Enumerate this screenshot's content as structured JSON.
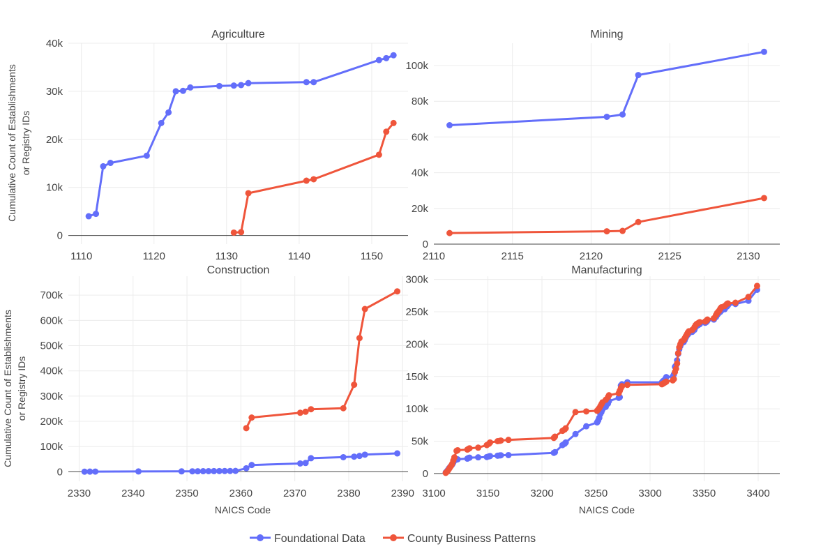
{
  "legend": [
    {
      "name": "Foundational Data",
      "color": "#636efa"
    },
    {
      "name": "County Business Patterns",
      "color": "#ef553b"
    }
  ],
  "y_title": [
    "Cumulative Count of Establishments",
    "or Registry IDs"
  ],
  "x_title": "NAICS Code",
  "chart_data": [
    {
      "type": "line",
      "title": "Agriculture",
      "xlim": [
        1108.2,
        1155.0
      ],
      "ylim": [
        -1800,
        40000
      ],
      "xticks": [
        1110,
        1120,
        1130,
        1140,
        1150
      ],
      "yticks": [
        0,
        10000,
        20000,
        30000,
        40000
      ],
      "ytick_labels": [
        "0",
        "10k",
        "20k",
        "30k",
        "40k"
      ],
      "series": [
        {
          "name": "Foundational Data",
          "color": "#636efa",
          "x": [
            1111,
            1112,
            1113,
            1114,
            1119,
            1121,
            1122,
            1123,
            1124,
            1125,
            1129,
            1131,
            1132,
            1133,
            1141,
            1142,
            1151,
            1152,
            1153
          ],
          "y": [
            4000,
            4500,
            14400,
            15100,
            16600,
            23400,
            25600,
            30000,
            30100,
            30800,
            31100,
            31200,
            31300,
            31700,
            31900,
            31900,
            36500,
            36900,
            37500
          ]
        },
        {
          "name": "County Business Patterns",
          "color": "#ef553b",
          "x": [
            1131,
            1132,
            1133,
            1141,
            1142,
            1151,
            1152,
            1153
          ],
          "y": [
            600,
            700,
            8800,
            11400,
            11700,
            16800,
            21600,
            23400
          ]
        }
      ]
    },
    {
      "type": "line",
      "title": "Mining",
      "xlim": [
        2110,
        2132.0
      ],
      "ylim": [
        0,
        112500
      ],
      "xticks": [
        2110,
        2115,
        2120,
        2125,
        2130
      ],
      "yticks": [
        0,
        20000,
        40000,
        60000,
        80000,
        100000
      ],
      "ytick_labels": [
        "0",
        "20k",
        "40k",
        "60k",
        "80k",
        "100k"
      ],
      "series": [
        {
          "name": "Foundational Data",
          "color": "#636efa",
          "x": [
            2111,
            2121,
            2122,
            2123,
            2131
          ],
          "y": [
            66600,
            71300,
            72600,
            94700,
            107700
          ]
        },
        {
          "name": "County Business Patterns",
          "color": "#ef553b",
          "x": [
            2111,
            2121,
            2122,
            2123,
            2131
          ],
          "y": [
            6200,
            7200,
            7400,
            12400,
            25800
          ]
        }
      ]
    },
    {
      "type": "line",
      "title": "Construction",
      "xlim": [
        2328.0,
        2391.0
      ],
      "ylim": [
        -37500,
        775000
      ],
      "xticks": [
        2330,
        2340,
        2350,
        2360,
        2370,
        2380,
        2390
      ],
      "yticks": [
        0,
        100000,
        200000,
        300000,
        400000,
        500000,
        600000,
        700000
      ],
      "ytick_labels": [
        "0",
        "100k",
        "200k",
        "300k",
        "400k",
        "500k",
        "600k",
        "700k"
      ],
      "series": [
        {
          "name": "Foundational Data",
          "color": "#636efa",
          "x": [
            2331,
            2332,
            2333,
            2341,
            2349,
            2351,
            2352,
            2353,
            2354,
            2355,
            2356,
            2357,
            2358,
            2359,
            2361,
            2362,
            2371,
            2372,
            2373,
            2379,
            2381,
            2382,
            2383,
            2389
          ],
          "y": [
            500,
            800,
            1000,
            1500,
            1800,
            2000,
            2200,
            2400,
            2600,
            2800,
            3000,
            3200,
            3400,
            3600,
            14000,
            27000,
            33000,
            35000,
            54000,
            58000,
            60000,
            63000,
            68000,
            73000
          ]
        },
        {
          "name": "County Business Patterns",
          "color": "#ef553b",
          "x": [
            2361,
            2362,
            2371,
            2372,
            2373,
            2379,
            2381,
            2382,
            2383,
            2389
          ],
          "y": [
            173000,
            215000,
            234000,
            238000,
            248000,
            252000,
            345000,
            530000,
            645000,
            715000
          ]
        }
      ]
    },
    {
      "type": "line",
      "title": "Manufacturing",
      "xlim": [
        3100,
        3420
      ],
      "ylim": [
        -12000,
        305000
      ],
      "xticks": [
        3100,
        3150,
        3200,
        3250,
        3300,
        3350,
        3400
      ],
      "yticks": [
        0,
        50000,
        100000,
        150000,
        200000,
        250000,
        300000
      ],
      "ytick_labels": [
        "0",
        "50k",
        "100k",
        "150k",
        "200k",
        "250k",
        "300k"
      ],
      "series": [
        {
          "name": "Foundational Data",
          "color": "#636efa",
          "x": [
            3111,
            3112,
            3113,
            3114,
            3115,
            3116,
            3117,
            3118,
            3119,
            3121,
            3122,
            3131,
            3132,
            3133,
            3141,
            3149,
            3151,
            3152,
            3159,
            3161,
            3162,
            3169,
            3211,
            3212,
            3219,
            3221,
            3222,
            3231,
            3241,
            3251,
            3252,
            3253,
            3254,
            3255,
            3256,
            3259,
            3261,
            3262,
            3271,
            3272,
            3273,
            3274,
            3279,
            3311,
            3312,
            3313,
            3314,
            3315,
            3321,
            3322,
            3323,
            3324,
            3325,
            3326,
            3327,
            3328,
            3329,
            3331,
            3332,
            3333,
            3334,
            3335,
            3336,
            3339,
            3341,
            3342,
            3343,
            3344,
            3345,
            3346,
            3351,
            3352,
            3353,
            3359,
            3361,
            3362,
            3363,
            3364,
            3365,
            3366,
            3369,
            3371,
            3372,
            3379,
            3391,
            3399
          ],
          "y": [
            1500,
            3500,
            5500,
            8000,
            10000,
            12000,
            14000,
            17000,
            20000,
            21500,
            22000,
            23000,
            24000,
            24500,
            25000,
            25500,
            26500,
            27000,
            27500,
            28000,
            28200,
            28500,
            32000,
            33000,
            44000,
            46000,
            48000,
            61000,
            73000,
            79000,
            82000,
            86000,
            92000,
            95000,
            99000,
            103000,
            108000,
            112000,
            117000,
            118000,
            136000,
            138000,
            141000,
            141000,
            143000,
            144000,
            146000,
            149000,
            150000,
            153000,
            165000,
            167000,
            175000,
            185000,
            192000,
            197000,
            201000,
            203000,
            206000,
            210000,
            213000,
            215000,
            217000,
            219000,
            222000,
            226000,
            228000,
            229000,
            230000,
            231000,
            233000,
            234000,
            236000,
            238000,
            242000,
            245000,
            247000,
            249000,
            250000,
            252000,
            254000,
            258000,
            260000,
            262000,
            267000,
            284000
          ]
        },
        {
          "name": "County Business Patterns",
          "color": "#ef553b",
          "x": [
            3111,
            3112,
            3113,
            3114,
            3115,
            3116,
            3117,
            3118,
            3119,
            3121,
            3122,
            3131,
            3132,
            3133,
            3141,
            3149,
            3151,
            3152,
            3159,
            3161,
            3162,
            3169,
            3211,
            3212,
            3219,
            3221,
            3222,
            3231,
            3241,
            3251,
            3252,
            3253,
            3254,
            3255,
            3256,
            3259,
            3261,
            3262,
            3271,
            3272,
            3273,
            3274,
            3279,
            3311,
            3312,
            3313,
            3314,
            3315,
            3321,
            3322,
            3323,
            3324,
            3325,
            3326,
            3327,
            3328,
            3329,
            3331,
            3332,
            3333,
            3334,
            3335,
            3336,
            3339,
            3341,
            3342,
            3343,
            3344,
            3345,
            3346,
            3351,
            3352,
            3353,
            3359,
            3361,
            3362,
            3363,
            3364,
            3365,
            3366,
            3369,
            3371,
            3372,
            3379,
            3391,
            3399
          ],
          "y": [
            1000,
            2500,
            4500,
            7000,
            9500,
            12000,
            15000,
            20000,
            25000,
            35000,
            36000,
            37000,
            38000,
            39000,
            40000,
            44000,
            46000,
            48000,
            50000,
            50500,
            51000,
            52000,
            55000,
            57000,
            66000,
            68000,
            70000,
            95000,
            96000,
            97000,
            99000,
            101000,
            104000,
            107000,
            110000,
            114000,
            118000,
            121000,
            124000,
            128000,
            132000,
            135000,
            137000,
            138000,
            139000,
            140000,
            141000,
            142000,
            144000,
            146000,
            157000,
            162000,
            170000,
            186000,
            195000,
            200000,
            204000,
            206000,
            209000,
            212000,
            215000,
            218000,
            220000,
            222000,
            226000,
            229000,
            231000,
            232000,
            233000,
            234000,
            235000,
            236000,
            238000,
            240000,
            245000,
            248000,
            250000,
            252000,
            255000,
            257000,
            259000,
            262000,
            263000,
            264000,
            273000,
            290000
          ]
        }
      ]
    }
  ]
}
